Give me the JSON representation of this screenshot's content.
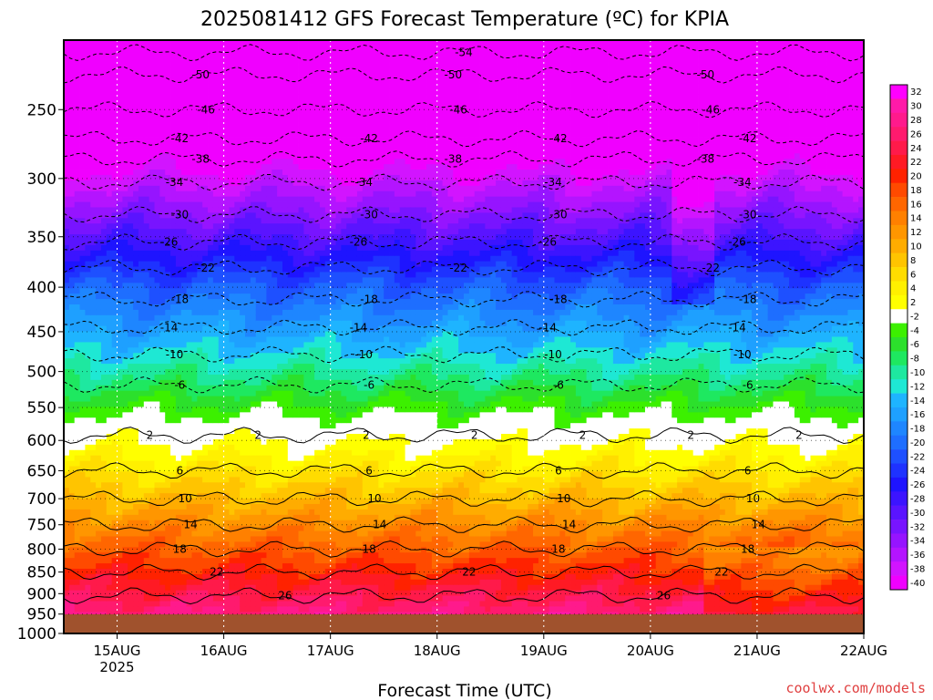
{
  "chart_data": {
    "type": "heatmap",
    "title": "2025081412 GFS Forecast Temperature (ºC) for KPIA",
    "xlabel": "Forecast Time (UTC)",
    "ylabel": "",
    "x_ticks": [
      "15AUG",
      "16AUG",
      "17AUG",
      "18AUG",
      "19AUG",
      "20AUG",
      "21AUG",
      "22AUG"
    ],
    "x_year": "2025",
    "y_scale": "log-pressure",
    "y_ticks": [
      250,
      300,
      350,
      400,
      450,
      500,
      550,
      600,
      650,
      700,
      750,
      800,
      850,
      900,
      950,
      1000
    ],
    "ylim": [
      1000,
      200
    ],
    "xlim_days": [
      14.5,
      22.0
    ],
    "grid": true,
    "colorbar": {
      "levels": [
        32,
        30,
        28,
        26,
        24,
        22,
        20,
        18,
        16,
        14,
        12,
        10,
        8,
        6,
        4,
        2,
        -2,
        -4,
        -6,
        -8,
        -10,
        -12,
        -14,
        -16,
        -18,
        -20,
        -22,
        -24,
        -26,
        -28,
        -30,
        -32,
        -34,
        -36,
        -38,
        -40
      ],
      "colors": [
        "#ff00ff",
        "#ff1aa8",
        "#ff1a8c",
        "#ff1a6e",
        "#ff1a4a",
        "#ff1a24",
        "#ff2200",
        "#ff4a00",
        "#ff6600",
        "#ff8000",
        "#ff9600",
        "#ffac00",
        "#ffc400",
        "#ffdc00",
        "#fff000",
        "#ffff00",
        "#ffffff",
        "#3cf000",
        "#2ce02c",
        "#1ee860",
        "#1ee8a0",
        "#1ee8d4",
        "#1eb4ff",
        "#1ea0ff",
        "#1e86ff",
        "#1e6eff",
        "#1e50ff",
        "#1e32ff",
        "#1e14ff",
        "#3c14ff",
        "#5a14ff",
        "#7814ff",
        "#9614ff",
        "#b414ff",
        "#d214ff",
        "#f000ff"
      ]
    },
    "contour_labels": [
      "-54",
      "-50",
      "-50",
      "-50",
      "-46",
      "-46",
      "-46",
      "-42",
      "-42",
      "-42",
      "-42",
      "-38",
      "-38",
      "-38",
      "-34",
      "-34",
      "-34",
      "-34",
      "-30",
      "-30",
      "-30",
      "-30",
      "-26",
      "-26",
      "-26",
      "-26",
      "-22",
      "-22",
      "-22",
      "-18",
      "-18",
      "-18",
      "-18",
      "-14",
      "-14",
      "-14",
      "-14",
      "-10",
      "-10",
      "-10",
      "-10",
      "-6",
      "-6",
      "-6",
      "-6",
      "2",
      "2",
      "2",
      "2",
      "2",
      "2",
      "2",
      "6",
      "6",
      "6",
      "6",
      "10",
      "10",
      "10",
      "10",
      "14",
      "14",
      "14",
      "14",
      "18",
      "18",
      "18",
      "22",
      "22",
      "22",
      "26",
      "26",
      "18"
    ],
    "surface_color": "#a0522d"
  },
  "credit": "coolwx.com/models"
}
